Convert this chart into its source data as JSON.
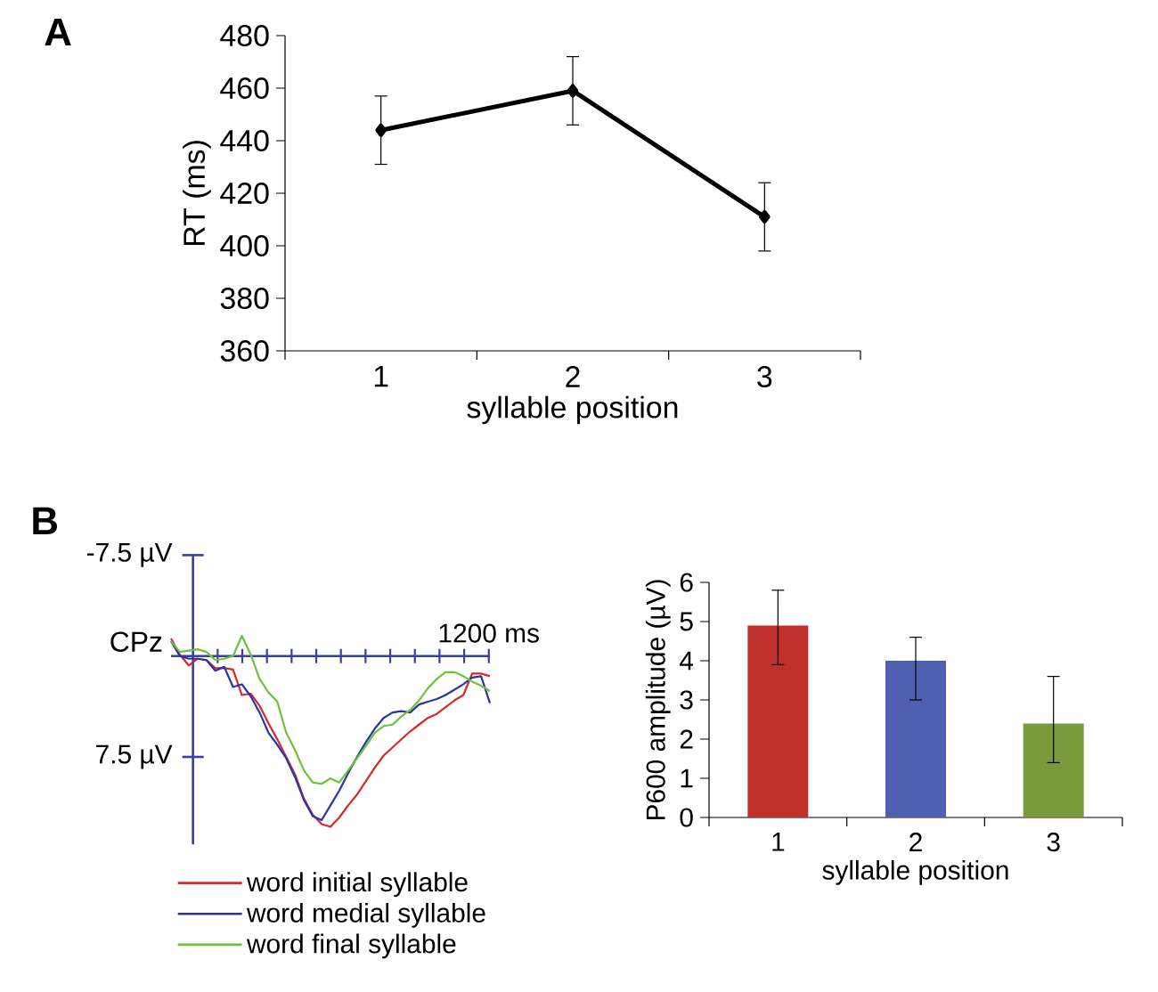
{
  "chart_data": [
    {
      "type": "line",
      "title": "A",
      "xlabel": "syllable position",
      "ylabel": "RT (ms)",
      "categories": [
        "1",
        "2",
        "3"
      ],
      "series": [
        {
          "color": "#000000",
          "values": [
            444,
            459,
            411
          ],
          "errors": [
            13,
            13,
            13
          ]
        }
      ],
      "ylim": [
        360,
        480
      ],
      "yticks": [
        360,
        380,
        400,
        420,
        440,
        460,
        480
      ],
      "marker": "diamond"
    },
    {
      "type": "line",
      "title": "B",
      "annotations": [
        "CPz",
        "1200 ms"
      ],
      "legend": "bottom",
      "ref_lines": [
        {
          "axis": "y",
          "value": 0,
          "color": "#3a3ea0"
        }
      ],
      "categories": [
        null,
        null,
        null,
        null,
        null,
        null,
        null,
        null,
        null,
        null,
        null,
        null,
        null,
        null,
        null,
        null,
        null,
        null,
        null,
        null,
        null,
        null,
        null,
        null,
        null,
        null,
        null,
        null,
        null,
        null,
        null,
        null,
        null,
        null,
        null,
        null,
        null
      ],
      "ylim": [
        14,
        -7.5
      ],
      "yticks": [
        {
          "value": -7.5,
          "label": "-7.5 µV"
        },
        {
          "value": 7.5,
          "label": "7.5 µV"
        }
      ],
      "series": [
        {
          "name": "word initial syllable",
          "color": "#d42a2a",
          "values": [
            -1.3,
            -0.1,
            0.7,
            0.2,
            0.3,
            0.9,
            0.9,
            1.0,
            2.9,
            2.8,
            3.7,
            5.0,
            6.2,
            7.5,
            8.8,
            10.6,
            11.8,
            12.5,
            12.7,
            12.0,
            11.1,
            10.3,
            9.3,
            8.3,
            7.4,
            6.8,
            6.2,
            5.6,
            5.1,
            4.6,
            4.3,
            3.8,
            3.3,
            2.9,
            1.3,
            1.3,
            1.5
          ]
        },
        {
          "name": "word medial syllable",
          "color": "#2a34a8",
          "values": [
            -1.1,
            0,
            0.2,
            0.2,
            0.3,
            1.1,
            0.8,
            2.3,
            2.1,
            3.0,
            4.2,
            5.7,
            6.6,
            7.6,
            9.0,
            10.7,
            11.9,
            12.2,
            11.1,
            10.0,
            8.7,
            7.5,
            6.4,
            5.4,
            4.6,
            4.2,
            4.1,
            4.2,
            3.6,
            3.4,
            3.2,
            2.9,
            2.5,
            2.1,
            1.6,
            1.5,
            3.5
          ]
        },
        {
          "name": "word final syllable",
          "color": "#6cc23a",
          "values": [
            -1.1,
            -0.3,
            -0.4,
            -0.5,
            -0.3,
            0.3,
            0.2,
            0,
            -1.5,
            -0.1,
            1.7,
            2.7,
            3.4,
            5.7,
            7.0,
            8.5,
            9.4,
            9.5,
            9.1,
            9.4,
            8.5,
            7.6,
            6.7,
            5.7,
            5.2,
            5.1,
            4.5,
            4.0,
            3.3,
            2.4,
            1.7,
            1.2,
            1.2,
            1.5,
            1.9,
            2.2,
            2.6
          ]
        }
      ]
    },
    {
      "type": "bar",
      "xlabel": "syllable position",
      "ylabel": "P600 amplitude (µV)",
      "categories": [
        "1",
        "2",
        "3"
      ],
      "values": [
        4.9,
        4.0,
        2.4
      ],
      "colors": [
        "#c0302a",
        "#5060b0",
        "#7a9a3c"
      ],
      "errors": [
        [
          3.9,
          5.8
        ],
        [
          3.0,
          4.6
        ],
        [
          1.4,
          3.6
        ]
      ],
      "ylim": [
        0,
        6
      ],
      "yticks": [
        0,
        1,
        2,
        3,
        4,
        5,
        6
      ]
    }
  ]
}
